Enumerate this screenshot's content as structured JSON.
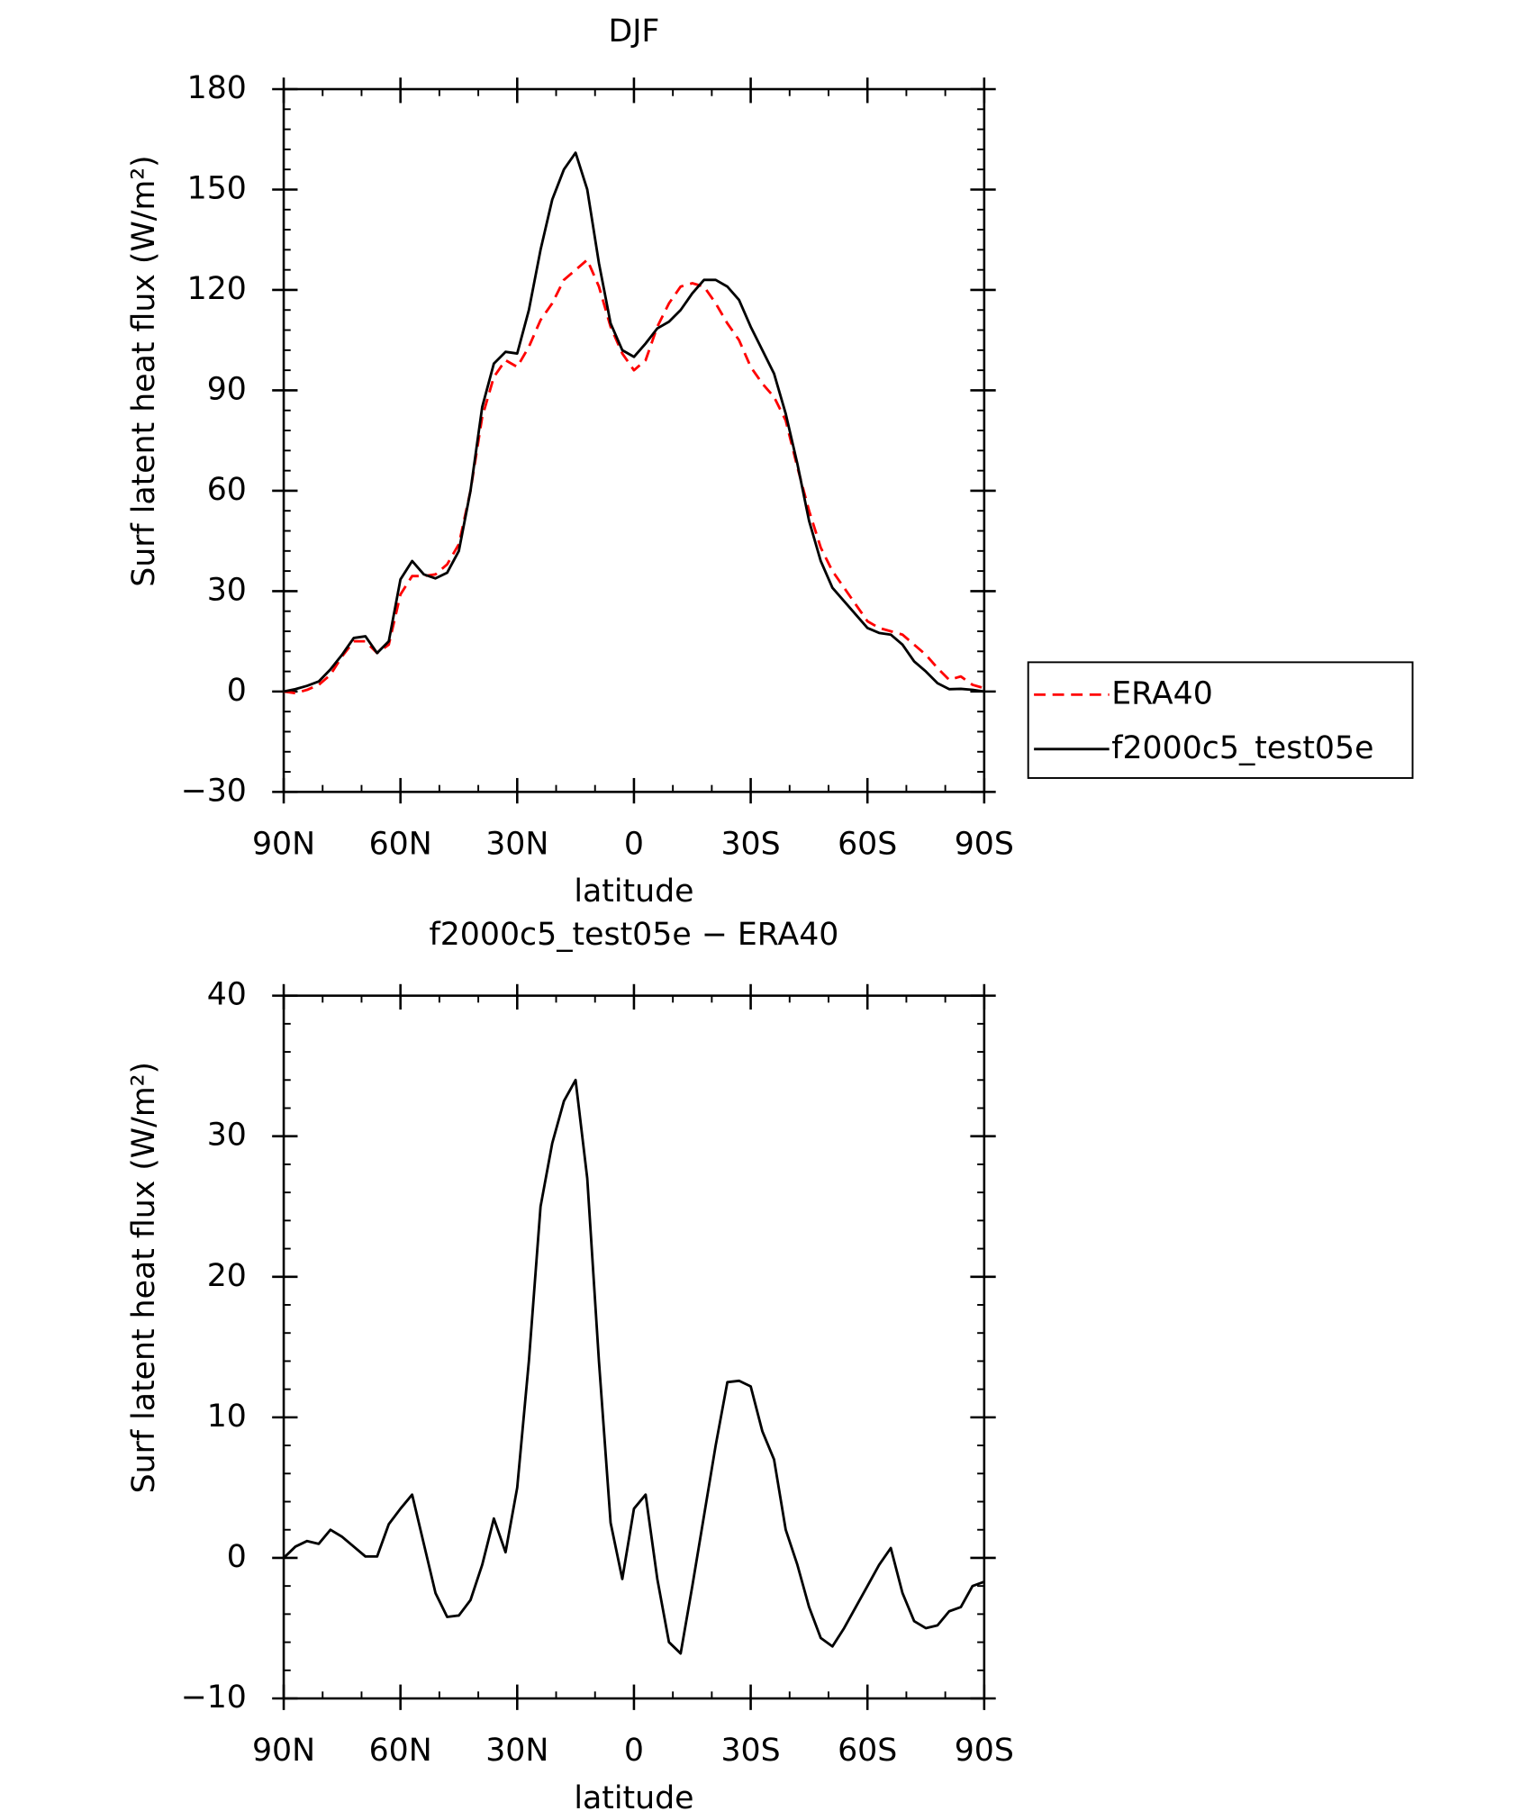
{
  "chart_data": [
    {
      "type": "line",
      "title": "DJF",
      "x_label": "latitude",
      "y_label": "Surf latent heat flux (W/m²)",
      "x": [
        90,
        87,
        84,
        81,
        78,
        75,
        72,
        69,
        66,
        63,
        60,
        57,
        54,
        51,
        48,
        45,
        42,
        39,
        36,
        33,
        30,
        27,
        24,
        21,
        18,
        15,
        12,
        9,
        6,
        3,
        0,
        -3,
        -6,
        -9,
        -12,
        -15,
        -18,
        -21,
        -24,
        -27,
        -30,
        -33,
        -36,
        -39,
        -42,
        -45,
        -48,
        -51,
        -54,
        -57,
        -60,
        -63,
        -66,
        -69,
        -72,
        -75,
        -78,
        -81,
        -84,
        -87,
        -90
      ],
      "series": [
        {
          "name": "ERA40",
          "color": "#ff0000",
          "style": "dashed",
          "values": [
            0,
            -0.5,
            0.5,
            2,
            5,
            10.5,
            15,
            15,
            11.5,
            14,
            29,
            34.5,
            34.5,
            35,
            38,
            44,
            60,
            82,
            94,
            99,
            97,
            103,
            111,
            116,
            123,
            126,
            129,
            121,
            109,
            101,
            96,
            99,
            109,
            116,
            121,
            122,
            121,
            116,
            110,
            105,
            97,
            92,
            88,
            81,
            67,
            54,
            43,
            36,
            31,
            26,
            21,
            19,
            18,
            17,
            14,
            11,
            7,
            3.5,
            4.5,
            2,
            1
          ]
        },
        {
          "name": "f2000c5_test05e",
          "color": "#000000",
          "style": "solid",
          "values": [
            0,
            0.7,
            1.7,
            3,
            6.6,
            11,
            16,
            16.5,
            11.5,
            15,
            33.5,
            39,
            35,
            33.8,
            35.5,
            42,
            60,
            85,
            98,
            101.5,
            101,
            114,
            132,
            147,
            156,
            161,
            150,
            128,
            110,
            102,
            100,
            104,
            108.5,
            110.5,
            114,
            119,
            123,
            123,
            121,
            117,
            109,
            102,
            95,
            83,
            68,
            51,
            39,
            31,
            27,
            23,
            19,
            17.5,
            17,
            14,
            9,
            6,
            2.5,
            0.7,
            0.8,
            0.5,
            0
          ]
        }
      ],
      "xlim": [
        90,
        -90
      ],
      "xticks": [
        {
          "value": 90,
          "label": "90N"
        },
        {
          "value": 60,
          "label": "60N"
        },
        {
          "value": 30,
          "label": "30N"
        },
        0,
        {
          "value": -30,
          "label": "30S"
        },
        {
          "value": -60,
          "label": "60S"
        },
        {
          "value": -90,
          "label": "90S"
        }
      ],
      "ylim": [
        -30,
        180
      ],
      "yticks": [
        {
          "value": -30,
          "label": "−30"
        },
        0,
        30,
        60,
        90,
        120,
        150,
        180
      ],
      "legend": "right"
    },
    {
      "type": "line",
      "title": "f2000c5_test05e − ERA40",
      "x_label": "latitude",
      "y_label": "Surf latent heat flux (W/m²)",
      "x": [
        90,
        87,
        84,
        81,
        78,
        75,
        72,
        69,
        66,
        63,
        60,
        57,
        54,
        51,
        48,
        45,
        42,
        39,
        36,
        33,
        30,
        27,
        24,
        21,
        18,
        15,
        12,
        9,
        6,
        3,
        0,
        -3,
        -6,
        -9,
        -12,
        -15,
        -18,
        -21,
        -24,
        -27,
        -30,
        -33,
        -36,
        -39,
        -42,
        -45,
        -48,
        -51,
        -54,
        -57,
        -60,
        -63,
        -66,
        -69,
        -72,
        -75,
        -78,
        -81,
        -84,
        -87,
        -90
      ],
      "values": [
        0,
        0.8,
        1.2,
        1,
        2,
        1.5,
        0.8,
        0.1,
        0.1,
        2.4,
        3.5,
        4.5,
        1,
        -2.5,
        -4.2,
        -4.1,
        -3,
        -0.5,
        2.8,
        0.4,
        5,
        14,
        25,
        29.5,
        32.5,
        34,
        27,
        14,
        2.5,
        -1.5,
        3.5,
        4.5,
        -1.5,
        -6,
        -6.8,
        -2,
        3,
        8,
        12.5,
        12.6,
        12.2,
        9,
        7,
        2,
        -0.5,
        -3.5,
        -5.7,
        -6.3,
        -5,
        -3.5,
        -2,
        -0.5,
        0.7,
        -2.5,
        -4.5,
        -5,
        -4.8,
        -3.8,
        -3.5,
        -2,
        -1.7
      ],
      "color": "#000000",
      "xlim": [
        90,
        -90
      ],
      "xticks": [
        {
          "value": 90,
          "label": "90N"
        },
        {
          "value": 60,
          "label": "60N"
        },
        {
          "value": 30,
          "label": "30N"
        },
        0,
        {
          "value": -30,
          "label": "30S"
        },
        {
          "value": -60,
          "label": "60S"
        },
        {
          "value": -90,
          "label": "90S"
        }
      ],
      "ylim": [
        -10,
        40
      ],
      "yticks": [
        {
          "value": -10,
          "label": "−10"
        },
        0,
        10,
        20,
        30,
        40
      ]
    }
  ]
}
